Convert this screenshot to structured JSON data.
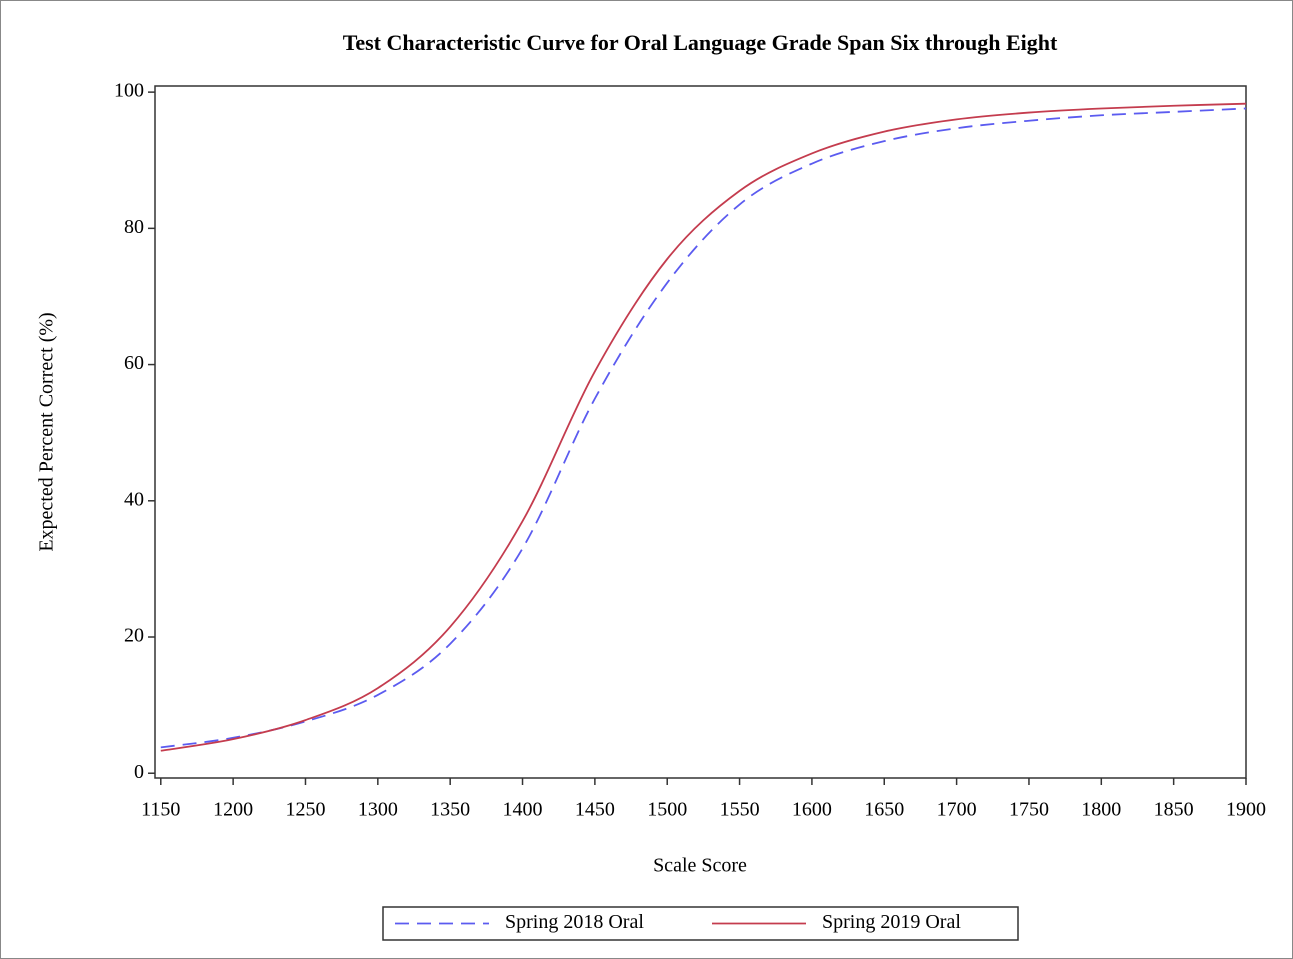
{
  "chart_data": {
    "type": "line",
    "title": "Test Characteristic Curve for Oral Language Grade Span Six through Eight",
    "x_label": "Scale Score",
    "y_label": "Expected Percent Correct (%)",
    "x": [
      1150,
      1200,
      1250,
      1300,
      1350,
      1400,
      1450,
      1500,
      1550,
      1600,
      1650,
      1700,
      1750,
      1800,
      1850,
      1900
    ],
    "series": [
      {
        "name": "Spring 2018 Oral",
        "color": "#5b5bf0",
        "style": "dashed",
        "values": [
          3.8,
          5.2,
          7.6,
          11.5,
          19,
          33,
          55,
          72,
          83.5,
          89.5,
          92.8,
          94.7,
          95.8,
          96.6,
          97.1,
          97.6
        ]
      },
      {
        "name": "Spring 2019 Oral",
        "color": "#c43c4e",
        "style": "solid",
        "values": [
          3.3,
          5,
          7.8,
          12.5,
          21.5,
          37,
          59,
          75.5,
          85.5,
          91,
          94.2,
          96,
          97,
          97.6,
          98,
          98.3
        ]
      }
    ],
    "xlim": [
      1146,
      1900
    ],
    "xticks": [
      1150,
      1200,
      1250,
      1300,
      1350,
      1400,
      1450,
      1500,
      1550,
      1600,
      1650,
      1700,
      1750,
      1800,
      1850,
      1900
    ],
    "ylim": [
      -0.7,
      100.9
    ],
    "yticks": [
      0,
      20,
      40,
      60,
      80,
      100
    ],
    "grid": false,
    "legend": "bottom"
  }
}
